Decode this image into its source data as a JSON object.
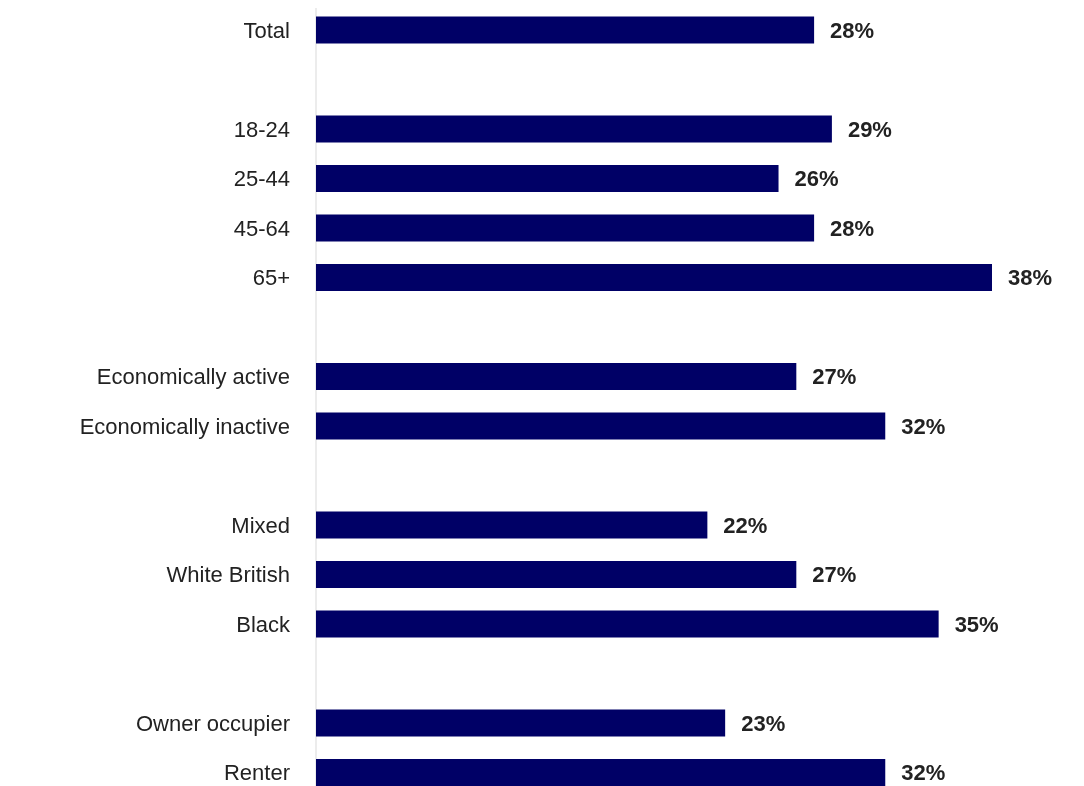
{
  "chart_data": {
    "type": "bar",
    "orientation": "horizontal",
    "categories": [
      "Total",
      null,
      "18-24",
      "25-44",
      "45-64",
      "65+",
      null,
      "Economically active",
      "Economically inactive",
      null,
      "Mixed",
      "White British",
      "Black",
      null,
      "Owner occupier",
      "Renter"
    ],
    "values": [
      28,
      null,
      29,
      26,
      28,
      38,
      null,
      27,
      32,
      null,
      22,
      27,
      35,
      null,
      23,
      32
    ],
    "value_labels": [
      "28%",
      null,
      "29%",
      "26%",
      "28%",
      "38%",
      null,
      "27%",
      "32%",
      null,
      "22%",
      "27%",
      "35%",
      null,
      "23%",
      "32%"
    ],
    "color": "#000066"
  }
}
